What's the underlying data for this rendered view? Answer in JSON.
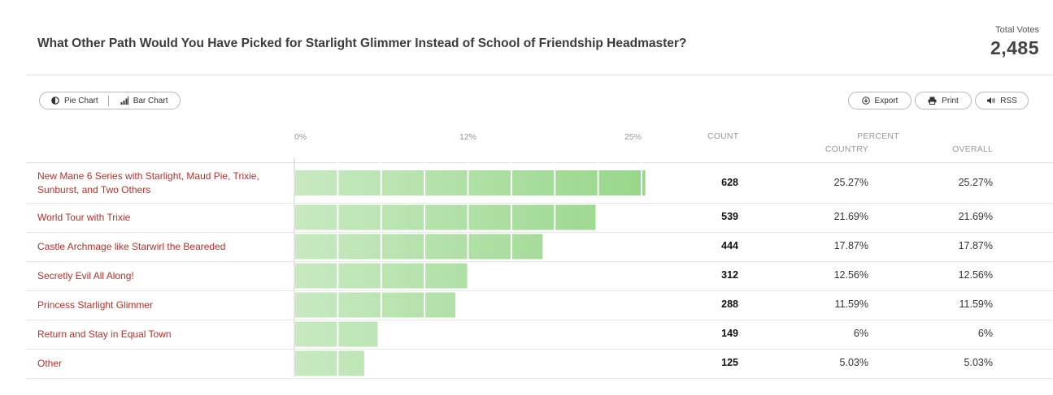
{
  "header": {
    "title": "What Other Path Would You Have Picked for Starlight Glimmer Instead of School of Friendship Headmaster?",
    "total_label": "Total Votes",
    "total_value": "2,485"
  },
  "toolbar": {
    "pie_label": "Pie Chart",
    "bar_label": "Bar Chart",
    "export_label": "Export",
    "print_label": "Print",
    "rss_label": "RSS"
  },
  "columns": {
    "count": "COUNT",
    "percent": "PERCENT",
    "country": "COUNTRY",
    "overall": "OVERALL"
  },
  "colors": {
    "bar_start": "#c8e9c1",
    "bar_end": "#98d78b",
    "label": "#b5322b"
  },
  "chart_data": {
    "type": "bar",
    "orientation": "horizontal",
    "xlim": [
      0,
      25
    ],
    "tick_labels": [
      "0%",
      "12%",
      "25%"
    ],
    "categories": [
      "New Mane 6 Series with Starlight, Maud Pie, Trixie, Sunburst, and Two Others",
      "World Tour with Trixie",
      "Castle Archmage like Starwirl the Beareded",
      "Secretly Evil All Along!",
      "Princess Starlight Glimmer",
      "Return and Stay in Equal Town",
      "Other"
    ],
    "values": [
      25.27,
      21.69,
      17.87,
      12.56,
      11.59,
      6,
      5.03
    ],
    "counts": [
      "628",
      "539",
      "444",
      "312",
      "288",
      "149",
      "125"
    ],
    "country_pct": [
      "25.27%",
      "21.69%",
      "17.87%",
      "12.56%",
      "11.59%",
      "6%",
      "5.03%"
    ],
    "overall_pct": [
      "25.27%",
      "21.69%",
      "17.87%",
      "12.56%",
      "11.59%",
      "6%",
      "5.03%"
    ],
    "grid": true
  }
}
